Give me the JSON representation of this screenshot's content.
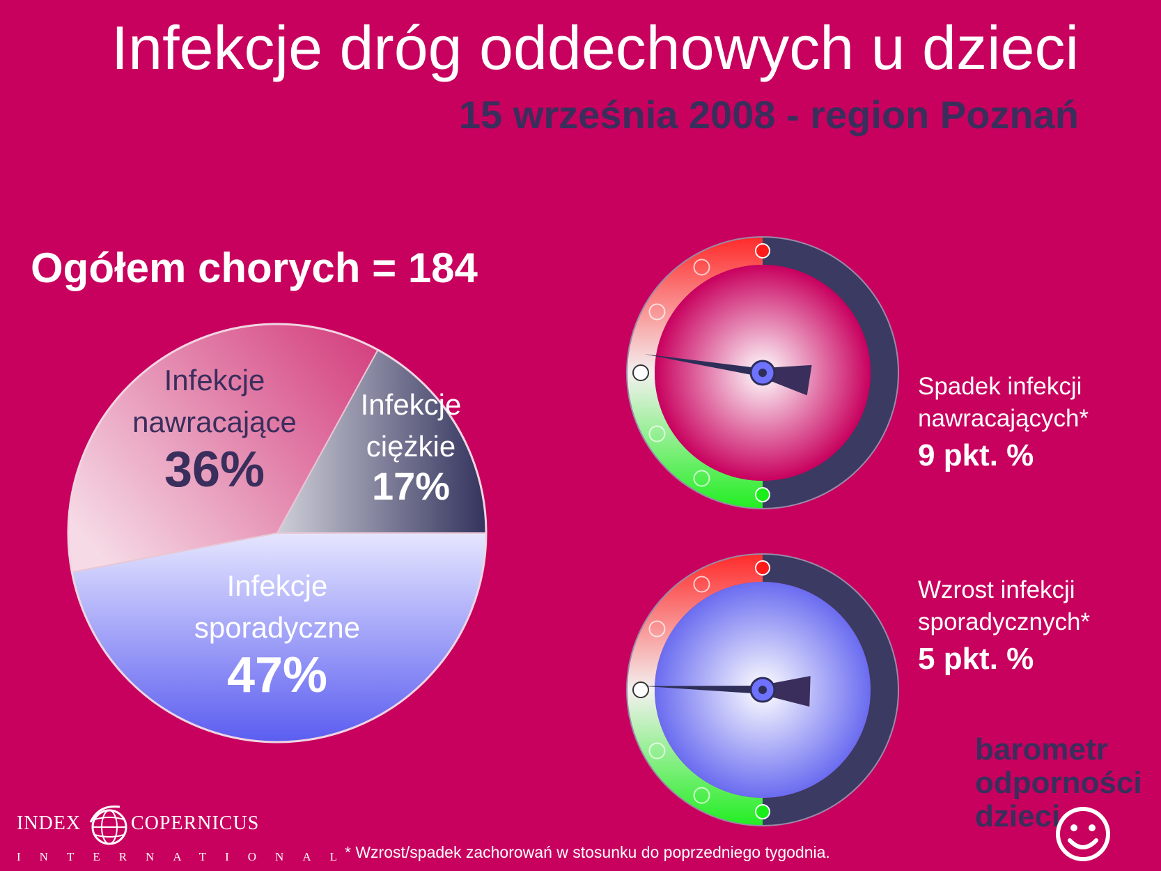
{
  "title": "Infekcje dróg oddechowych u dzieci",
  "subtitle": "15 września 2008 - region Poznań",
  "total_label": "Ogółem chorych = 184",
  "chart_data": {
    "type": "pie",
    "slices": [
      {
        "name_line1": "Infekcje",
        "name_line2": "ciężkie",
        "label": "17%",
        "value": 17,
        "color": "#3a3a66"
      },
      {
        "name_line1": "Infekcje",
        "name_line2": "nawracające",
        "label": "36%",
        "value": 36,
        "color": "#d94b8a"
      },
      {
        "name_line1": "Infekcje",
        "name_line2": "sporadyczne",
        "label": "47%",
        "value": 47,
        "color": "#7f80f5"
      }
    ]
  },
  "gauges": [
    {
      "line1": "Spadek infekcji",
      "line2": "nawracających*",
      "value_label": "9 pkt. %",
      "center_color": "#c8005e",
      "needle_level": 0.1
    },
    {
      "line1": "Wzrost infekcji",
      "line2": "sporadycznych*",
      "value_label": "5 pkt. %",
      "center_color": "#6a6cf0",
      "needle_level": 0.02
    }
  ],
  "footnote": "* Wzrost/spadek zachorowań w stosunku do poprzedniego tygodnia.",
  "logos": {
    "index_word1": "INDEX",
    "index_word2": "COPERNICUS",
    "index_word3": "INTERNATIONAL",
    "barometr": [
      "barometr",
      "odporności",
      "dzieci"
    ]
  }
}
